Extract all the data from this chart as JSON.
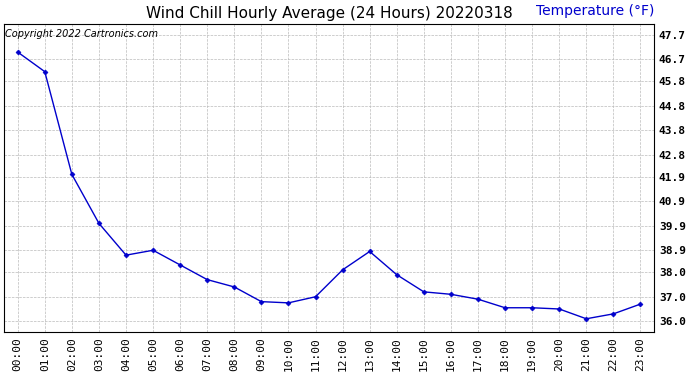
{
  "title": "Wind Chill Hourly Average (24 Hours) 20220318",
  "ylabel_text": "Temperature (°F)",
  "copyright_text": "Copyright 2022 Cartronics.com",
  "hours": [
    "00:00",
    "01:00",
    "02:00",
    "03:00",
    "04:00",
    "05:00",
    "06:00",
    "07:00",
    "08:00",
    "09:00",
    "10:00",
    "11:00",
    "12:00",
    "13:00",
    "14:00",
    "15:00",
    "16:00",
    "17:00",
    "18:00",
    "19:00",
    "20:00",
    "21:00",
    "22:00",
    "23:00"
  ],
  "values": [
    47.0,
    46.2,
    42.0,
    40.0,
    38.7,
    38.9,
    38.3,
    37.7,
    37.4,
    36.8,
    36.75,
    37.0,
    38.1,
    38.85,
    37.9,
    37.2,
    37.1,
    36.9,
    36.55,
    36.55,
    36.5,
    36.1,
    36.3,
    36.7
  ],
  "line_color": "#0000cc",
  "marker_color": "#0000cc",
  "grid_color": "#bbbbbb",
  "bg_color": "#ffffff",
  "ylim_min": 35.55,
  "ylim_max": 48.15,
  "yticks": [
    36.0,
    37.0,
    38.0,
    38.9,
    39.9,
    40.9,
    41.9,
    42.8,
    43.8,
    44.8,
    45.8,
    46.7,
    47.7
  ],
  "title_fontsize": 11,
  "ylabel_fontsize": 10,
  "copyright_fontsize": 7,
  "tick_fontsize": 8,
  "ytick_fontsize": 8
}
